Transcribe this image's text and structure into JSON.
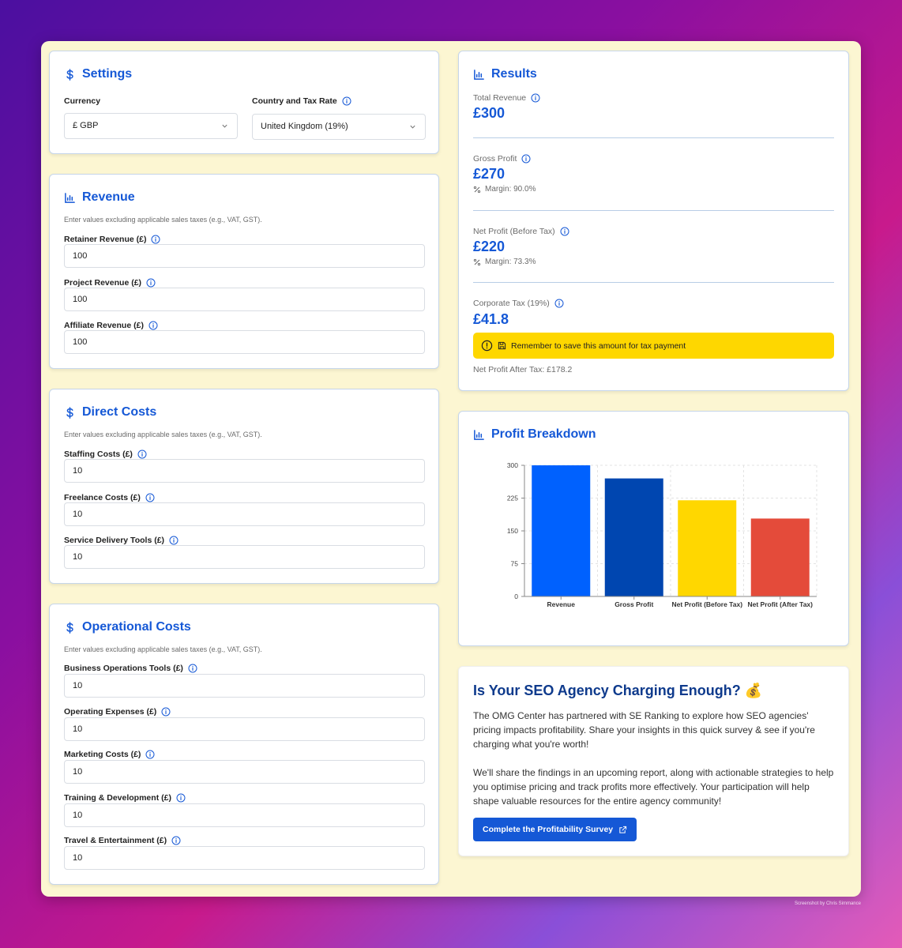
{
  "settings": {
    "title": "Settings",
    "currency_label": "Currency",
    "currency_value": "£ GBP",
    "country_label": "Country and Tax Rate",
    "country_value": "United Kingdom (19%)"
  },
  "revenue": {
    "title": "Revenue",
    "hint": "Enter values excluding applicable sales taxes (e.g., VAT, GST).",
    "fields": [
      {
        "label": "Retainer Revenue (£)",
        "value": "100"
      },
      {
        "label": "Project Revenue (£)",
        "value": "100"
      },
      {
        "label": "Affiliate Revenue (£)",
        "value": "100"
      }
    ]
  },
  "direct_costs": {
    "title": "Direct Costs",
    "hint": "Enter values excluding applicable sales taxes (e.g., VAT, GST).",
    "fields": [
      {
        "label": "Staffing Costs (£)",
        "value": "10"
      },
      {
        "label": "Freelance Costs (£)",
        "value": "10"
      },
      {
        "label": "Service Delivery Tools (£)",
        "value": "10"
      }
    ]
  },
  "operational_costs": {
    "title": "Operational Costs",
    "hint": "Enter values excluding applicable sales taxes (e.g., VAT, GST).",
    "fields": [
      {
        "label": "Business Operations Tools (£)",
        "value": "10"
      },
      {
        "label": "Operating Expenses (£)",
        "value": "10"
      },
      {
        "label": "Marketing Costs (£)",
        "value": "10"
      },
      {
        "label": "Training & Development (£)",
        "value": "10"
      },
      {
        "label": "Travel & Entertainment (£)",
        "value": "10"
      }
    ]
  },
  "results": {
    "title": "Results",
    "total_revenue_label": "Total Revenue",
    "total_revenue_value": "£300",
    "gross_profit_label": "Gross Profit",
    "gross_profit_value": "£270",
    "gross_margin": "Margin: 90.0%",
    "net_profit_label": "Net Profit (Before Tax)",
    "net_profit_value": "£220",
    "net_margin": "Margin: 73.3%",
    "corp_tax_label": "Corporate Tax (19%)",
    "corp_tax_value": "£41.8",
    "tax_alert": "Remember to save this amount for tax payment",
    "after_tax": "Net Profit After Tax: £178.2"
  },
  "profit_breakdown": {
    "title": "Profit Breakdown"
  },
  "chart_data": {
    "type": "bar",
    "categories": [
      "Revenue",
      "Gross Profit",
      "Net Profit (Before Tax)",
      "Net Profit (After Tax)"
    ],
    "values": [
      300,
      270,
      220,
      178.2
    ],
    "colors": [
      "#0061fe",
      "#0046b0",
      "#ffd700",
      "#e44b3a"
    ],
    "yticks": [
      0,
      75,
      150,
      225,
      300
    ],
    "ylim": [
      0,
      300
    ],
    "grid": true,
    "title": "",
    "xlabel": "",
    "ylabel": ""
  },
  "survey": {
    "title": "Is Your SEO Agency Charging Enough? 💰",
    "para1": "The OMG Center has partnered with SE Ranking to explore how SEO agencies' pricing impacts profitability. Share your insights in this quick survey & see if you're charging what you're worth!",
    "para2": "We'll share the findings in an upcoming report, along with actionable strategies to help you optimise pricing and track profits more effectively. Your participation will help shape valuable resources for the entire agency community!",
    "button_label": "Complete the Profitability Survey"
  },
  "credit": "Screenshot by Chris Simmance",
  "colors": {
    "accent": "#1558d6",
    "alert": "#fed700",
    "frame": "#fcf6d2"
  }
}
